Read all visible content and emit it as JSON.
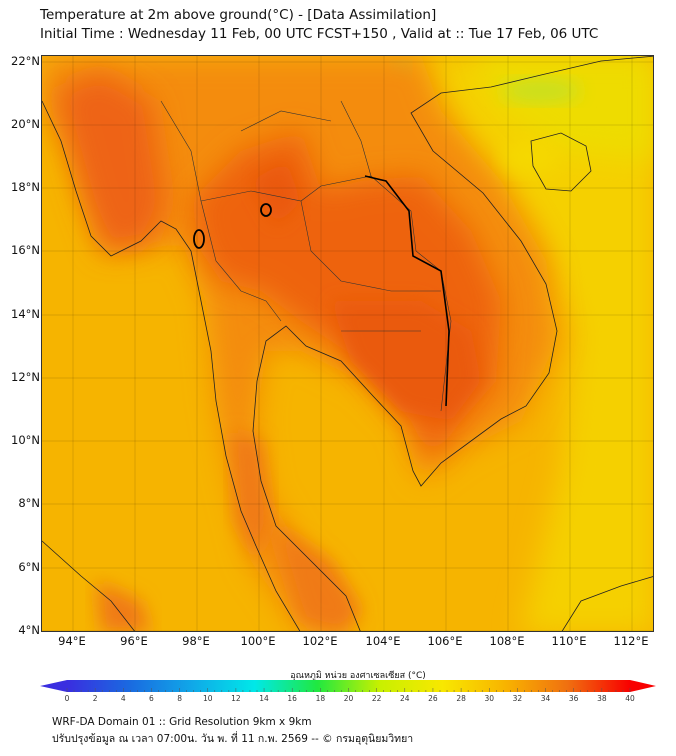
{
  "header": {
    "title": "Temperature at 2m above ground(°C) - [Data Assimilation]",
    "subtitle": "Initial Time : Wednesday 11 Feb, 00 UTC FCST+150 , Valid at :: Tue 17 Feb, 06 UTC"
  },
  "map": {
    "lat_labels": [
      "22°N",
      "20°N",
      "18°N",
      "16°N",
      "14°N",
      "12°N",
      "10°N",
      "8°N",
      "6°N",
      "4°N"
    ],
    "lon_labels": [
      "94°E",
      "96°E",
      "98°E",
      "100°E",
      "102°E",
      "104°E",
      "106°E",
      "108°E",
      "110°E",
      "112°E"
    ],
    "lat_range": [
      4,
      22
    ],
    "lon_range": [
      93,
      112.7
    ]
  },
  "colorbar": {
    "label": "อุณหภูมิ หน่วย องศาเซลเซียส (°C)",
    "ticks": [
      "0",
      "2",
      "4",
      "6",
      "8",
      "10",
      "12",
      "14",
      "16",
      "18",
      "20",
      "22",
      "24",
      "26",
      "28",
      "30",
      "32",
      "34",
      "36",
      "38",
      "40"
    ],
    "range": [
      0,
      40
    ],
    "colors": [
      "#3a2ee0",
      "#1a6ae0",
      "#10a8e8",
      "#00e8e8",
      "#20e840",
      "#c8f000",
      "#f8e800",
      "#f8b400",
      "#f07010",
      "#f80000"
    ]
  },
  "footer": {
    "line1": "WRF-DA Domain 01 :: Grid Resolution 9km x 9km",
    "line2": "ปรับปรุงข้อมูล ณ เวลา 07:00น. วัน พ. ที่ 11 ก.พ. 2569 -- © กรมอุตุนิยมวิทยา"
  }
}
